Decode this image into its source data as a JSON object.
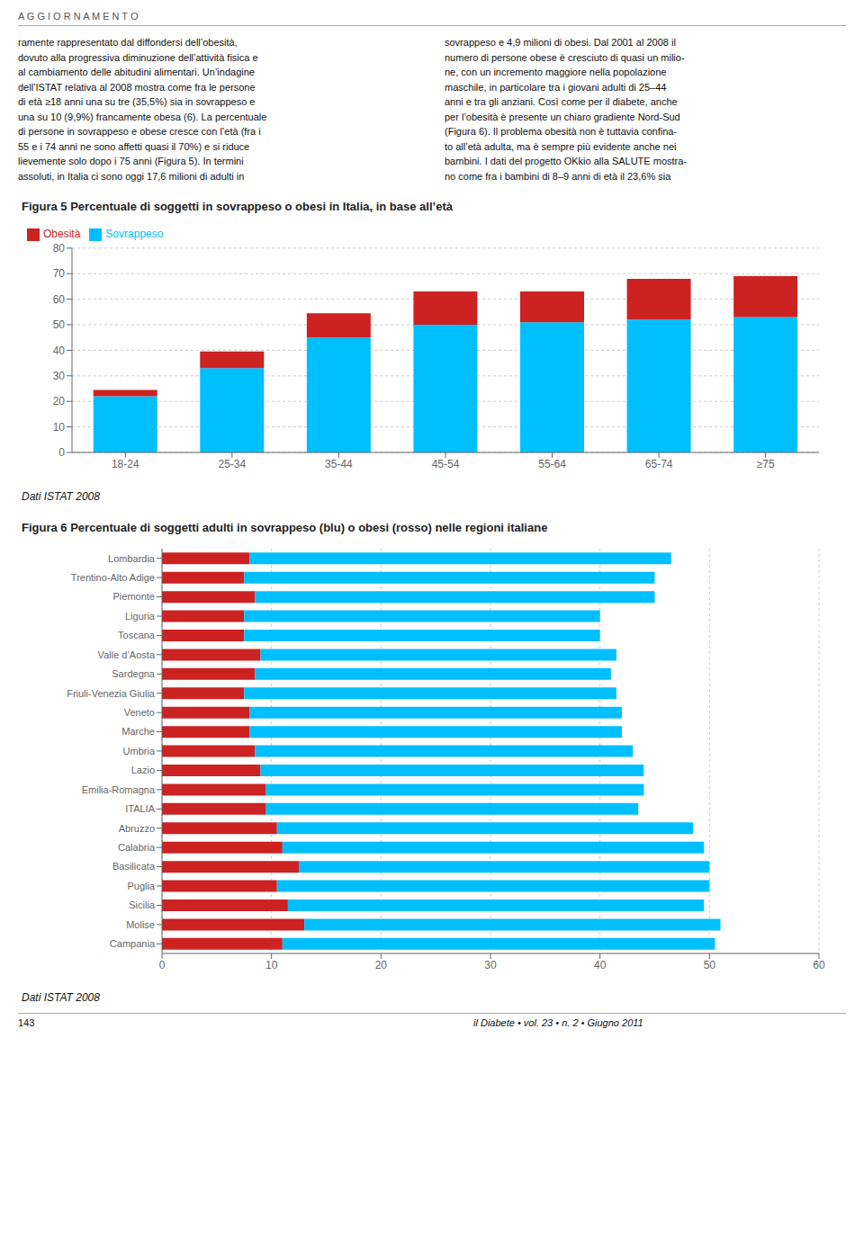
{
  "annotations": [
    "A G G I O R N A M E N T O",
    "ramente rappresentato dal diffondersi dell’obesità,\ndovuto alla progressiva diminuzione dell’attività fisica e\nal cambiamento delle abitudini alimentari. Un’indagine\ndell’ISTAT relativa al 2008 mostra come fra le persone\ndi età ≥18 anni una su tre (35,5%) sia in sovrappeso e\nuna su 10 (9,9%) francamente obesa (6). La percentuale\ndi persone in sovrappeso e obese cresce con l’età (fra i\n55 e i 74 anni ne sono affetti quasi il 70%) e si riduce\nlievemente solo dopo i 75 anni (Figura 5). In termini\nassoluti, in Italia ci sono oggi 17,6 milioni di adulti in",
    "sovrappeso e 4,9 milioni di obesi. Dal 2001 al 2008 il\nnumero di persone obese è cresciuto di quasi un milio-\nne, con un incremento maggiore nella popolazione\nmaschile, in particolare tra i giovani adulti di 25–44\nanni e tra gli anziani. Così come per il diabete, anche\nper l’obesità è presente un chiaro gradiente Nord-Sud\n(Figura 6). Il problema obesità non è tuttavia confina-\nto all’età adulta, ma è sempre più evidente anche nei\nbambini. I dati del progetto OKkio alla SALUTE mostra-\nno come fra i bambini di 8–9 anni di età il 23,6% sia",
    "143",
    "il Diabete  •  vol. 23  •  n. 2  •  Giugno 2011"
  ],
  "chart_data": [
    {
      "type": "bar",
      "title": "Figura 5 Percentuale di soggetti in sovrappeso o obesi in Italia, in base all’età",
      "categories": [
        "18-24",
        "25-34",
        "35-44",
        "45-54",
        "55-64",
        "65-74",
        "≥75"
      ],
      "series": [
        {
          "name": "Sovrappeso",
          "color": "#00BFFF",
          "values": [
            22,
            33,
            45,
            50,
            51,
            52,
            53
          ]
        },
        {
          "name": "Obesità",
          "color": "#CC2222",
          "values": [
            2.5,
            6.5,
            9.5,
            13,
            12,
            16,
            16
          ]
        }
      ],
      "ylim": [
        0,
        80
      ],
      "yticks": [
        0,
        10,
        20,
        30,
        40,
        50,
        60,
        70,
        80
      ],
      "stacked": true,
      "grid": true,
      "legend": "upper left",
      "annotations": [
        "Dati ISTAT 2008"
      ]
    },
    {
      "type": "bar",
      "title": "Figura 6 Percentuale di soggetti adulti in sovrappeso (blu) o obesi (rosso) nelle regioni italiane",
      "orientation": "horizontal",
      "categories": [
        "Lombardia",
        "Trentino-Alto Adige",
        "Piemonte",
        "Liguria",
        "Toscana",
        "Valle d’Aosta",
        "Sardegna",
        "Friuli-Venezia Giulia",
        "Veneto",
        "Marche",
        "Umbria",
        "Lazio",
        "Emilia-Romagna",
        "ITALIA",
        "Abruzzo",
        "Calabria",
        "Basilicata",
        "Puglia",
        "Sicilia",
        "Molise",
        "Campania"
      ],
      "series": [
        {
          "color": "#CC2222",
          "values": [
            8.0,
            7.5,
            8.5,
            7.5,
            7.5,
            9.0,
            8.5,
            7.5,
            8.0,
            8.0,
            8.5,
            9.0,
            9.5,
            9.5,
            10.5,
            11.0,
            12.5,
            10.5,
            11.5,
            13.0,
            11.0
          ]
        },
        {
          "color": "#00BFFF",
          "values": [
            38.5,
            37.5,
            36.5,
            32.5,
            32.5,
            32.5,
            32.5,
            34.0,
            34.0,
            34.0,
            34.5,
            35.0,
            34.5,
            34.0,
            38.0,
            38.5,
            37.5,
            39.5,
            38.0,
            38.0,
            39.5
          ]
        }
      ],
      "xlim": [
        0,
        60
      ],
      "xticks": [
        0,
        10,
        20,
        30,
        40,
        50,
        60
      ],
      "stacked": true,
      "grid": true,
      "annotations": [
        "Dati ISTAT 2008"
      ]
    }
  ]
}
